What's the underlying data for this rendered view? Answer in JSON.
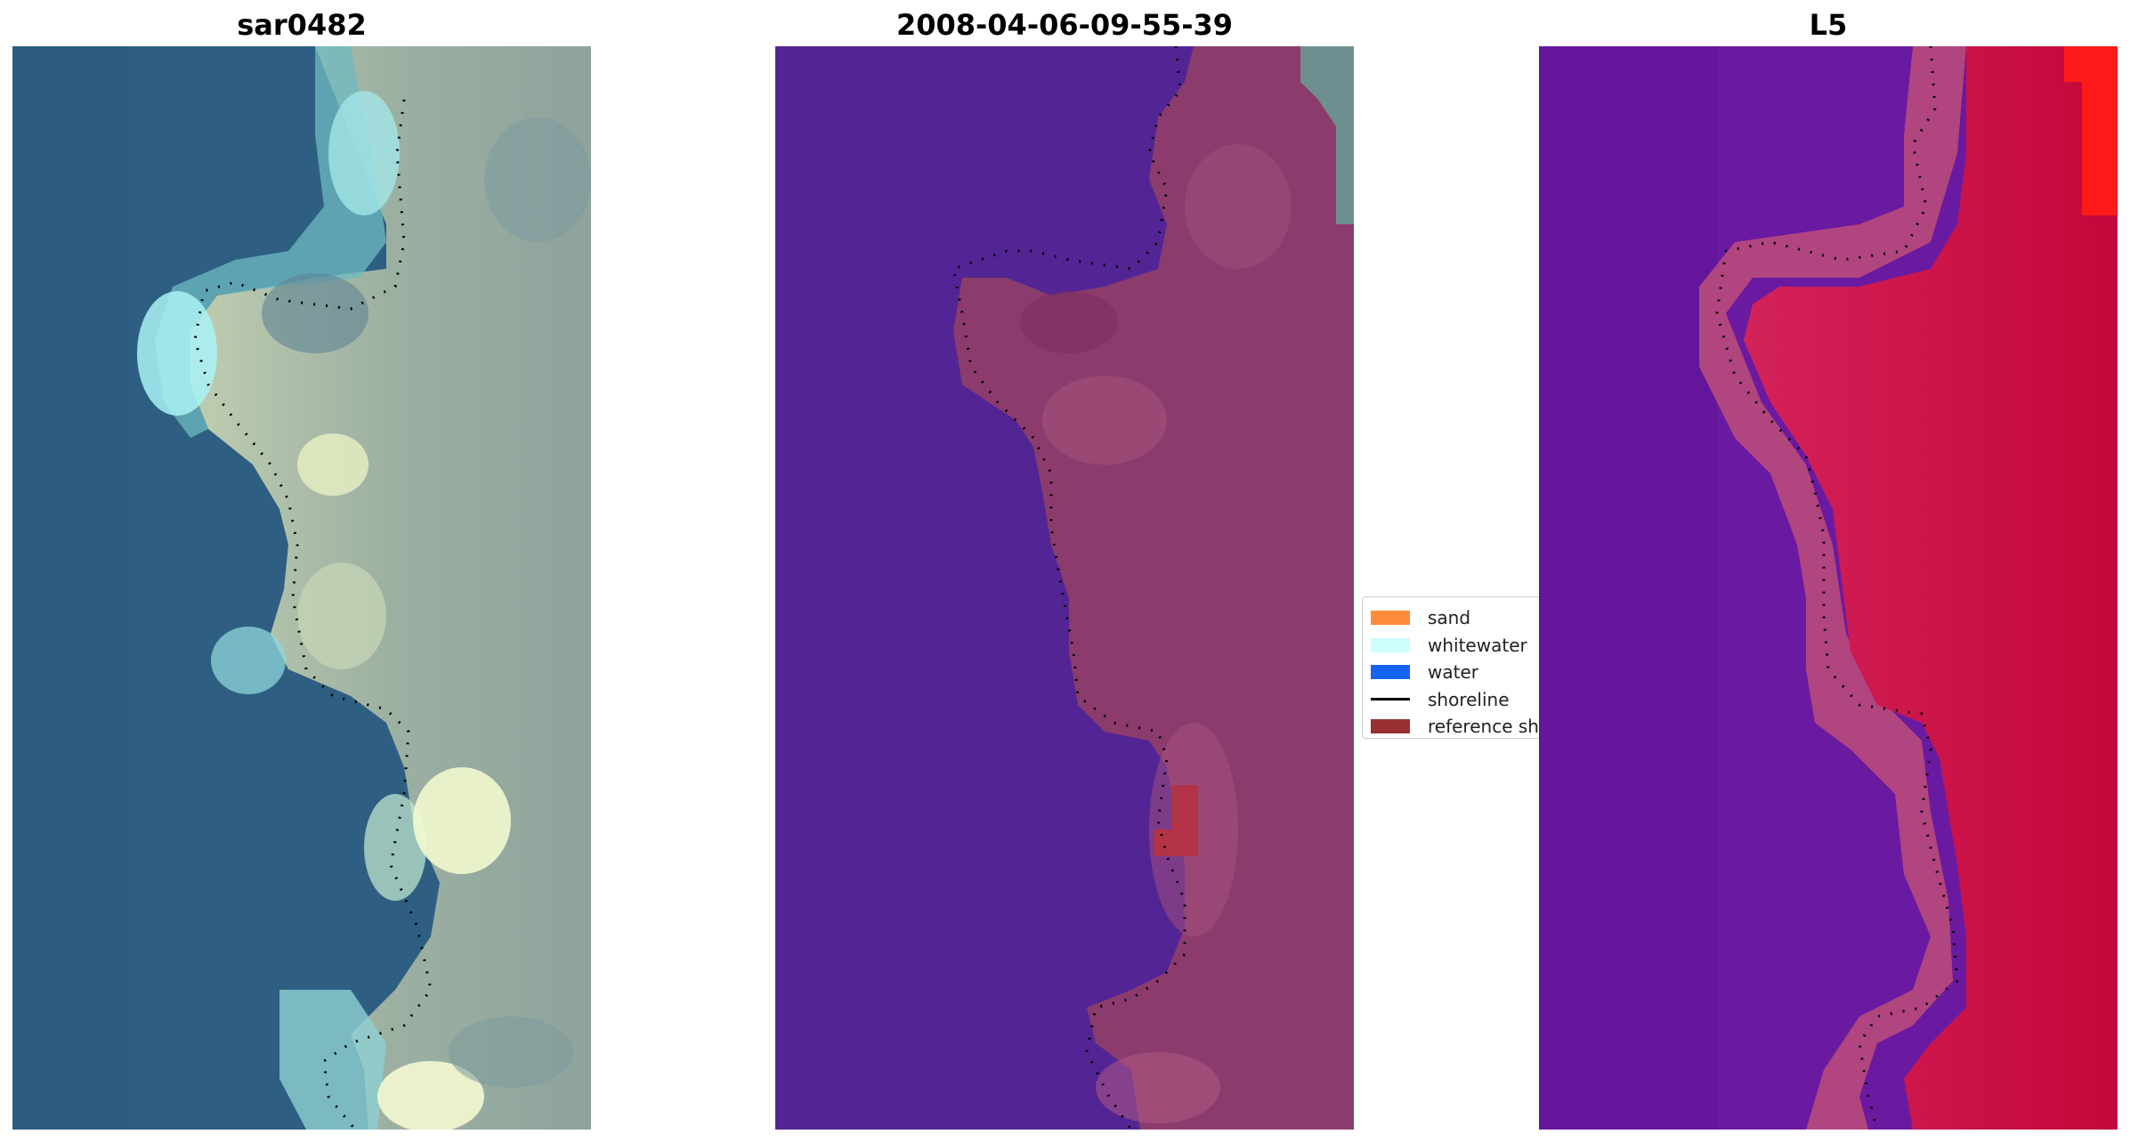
{
  "panels": [
    {
      "title": "sar0482"
    },
    {
      "title": "2008-04-06-09-55-39"
    },
    {
      "title": "L5"
    }
  ],
  "legend": {
    "items": [
      {
        "label": "sand",
        "kind": "patch",
        "color": "#ff8c3a"
      },
      {
        "label": "whitewater",
        "kind": "patch",
        "color": "#ccfffd"
      },
      {
        "label": "water",
        "kind": "patch",
        "color": "#1464f4"
      },
      {
        "label": "shoreline",
        "kind": "line",
        "color": "#000000"
      },
      {
        "label": "reference shoreline",
        "kind": "patch",
        "color": "#992e33"
      }
    ]
  },
  "colors": {
    "rgb_water": "#2e5f82",
    "rgb_whitewater": "#a9f2f4",
    "rgb_land": "#9fb0a0",
    "class_water": "#532594",
    "class_land": "#8b3c6c",
    "class_reference": "#b23346",
    "index_low": "#6a1aa0",
    "index_high": "#c4073a",
    "shoreline": "#000000"
  }
}
